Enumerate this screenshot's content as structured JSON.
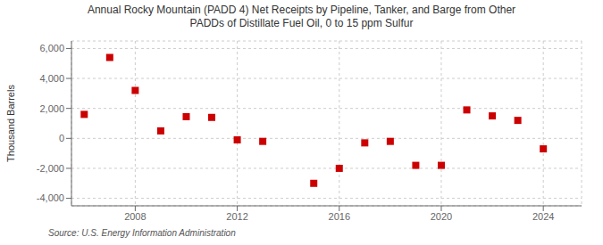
{
  "chart_data": {
    "type": "scatter",
    "title": "Annual Rocky Mountain (PADD 4) Net Receipts by Pipeline, Tanker, and Barge from Other\nPADDs of Distillate Fuel Oil, 0 to 15 ppm Sulfur",
    "y_label": "Thousand Barrels",
    "annotations": [
      "Source: U.S. Energy Information Administration"
    ],
    "x": [
      2006,
      2007,
      2008,
      2009,
      2010,
      2011,
      2012,
      2013,
      2015,
      2016,
      2017,
      2018,
      2019,
      2020,
      2021,
      2022,
      2023,
      2024
    ],
    "values": [
      1600,
      5400,
      3200,
      500,
      1450,
      1400,
      -100,
      -200,
      -3000,
      -2000,
      -300,
      -200,
      -1800,
      -1800,
      1900,
      1500,
      1200,
      -700
    ],
    "color": "#cc0000",
    "marker": "square",
    "xlim": [
      2005.5,
      2025.5
    ],
    "xticks": [
      2008,
      2012,
      2016,
      2020,
      2024
    ],
    "ylim": [
      -4500,
      6500
    ],
    "yticks": [
      {
        "value": -4000,
        "label": "-4,000"
      },
      {
        "value": -2000,
        "label": "-2,000"
      },
      0,
      {
        "value": 2000,
        "label": "2,000"
      },
      {
        "value": 4000,
        "label": "4,000"
      },
      {
        "value": 6000,
        "label": "6,000"
      }
    ],
    "grid": true
  }
}
